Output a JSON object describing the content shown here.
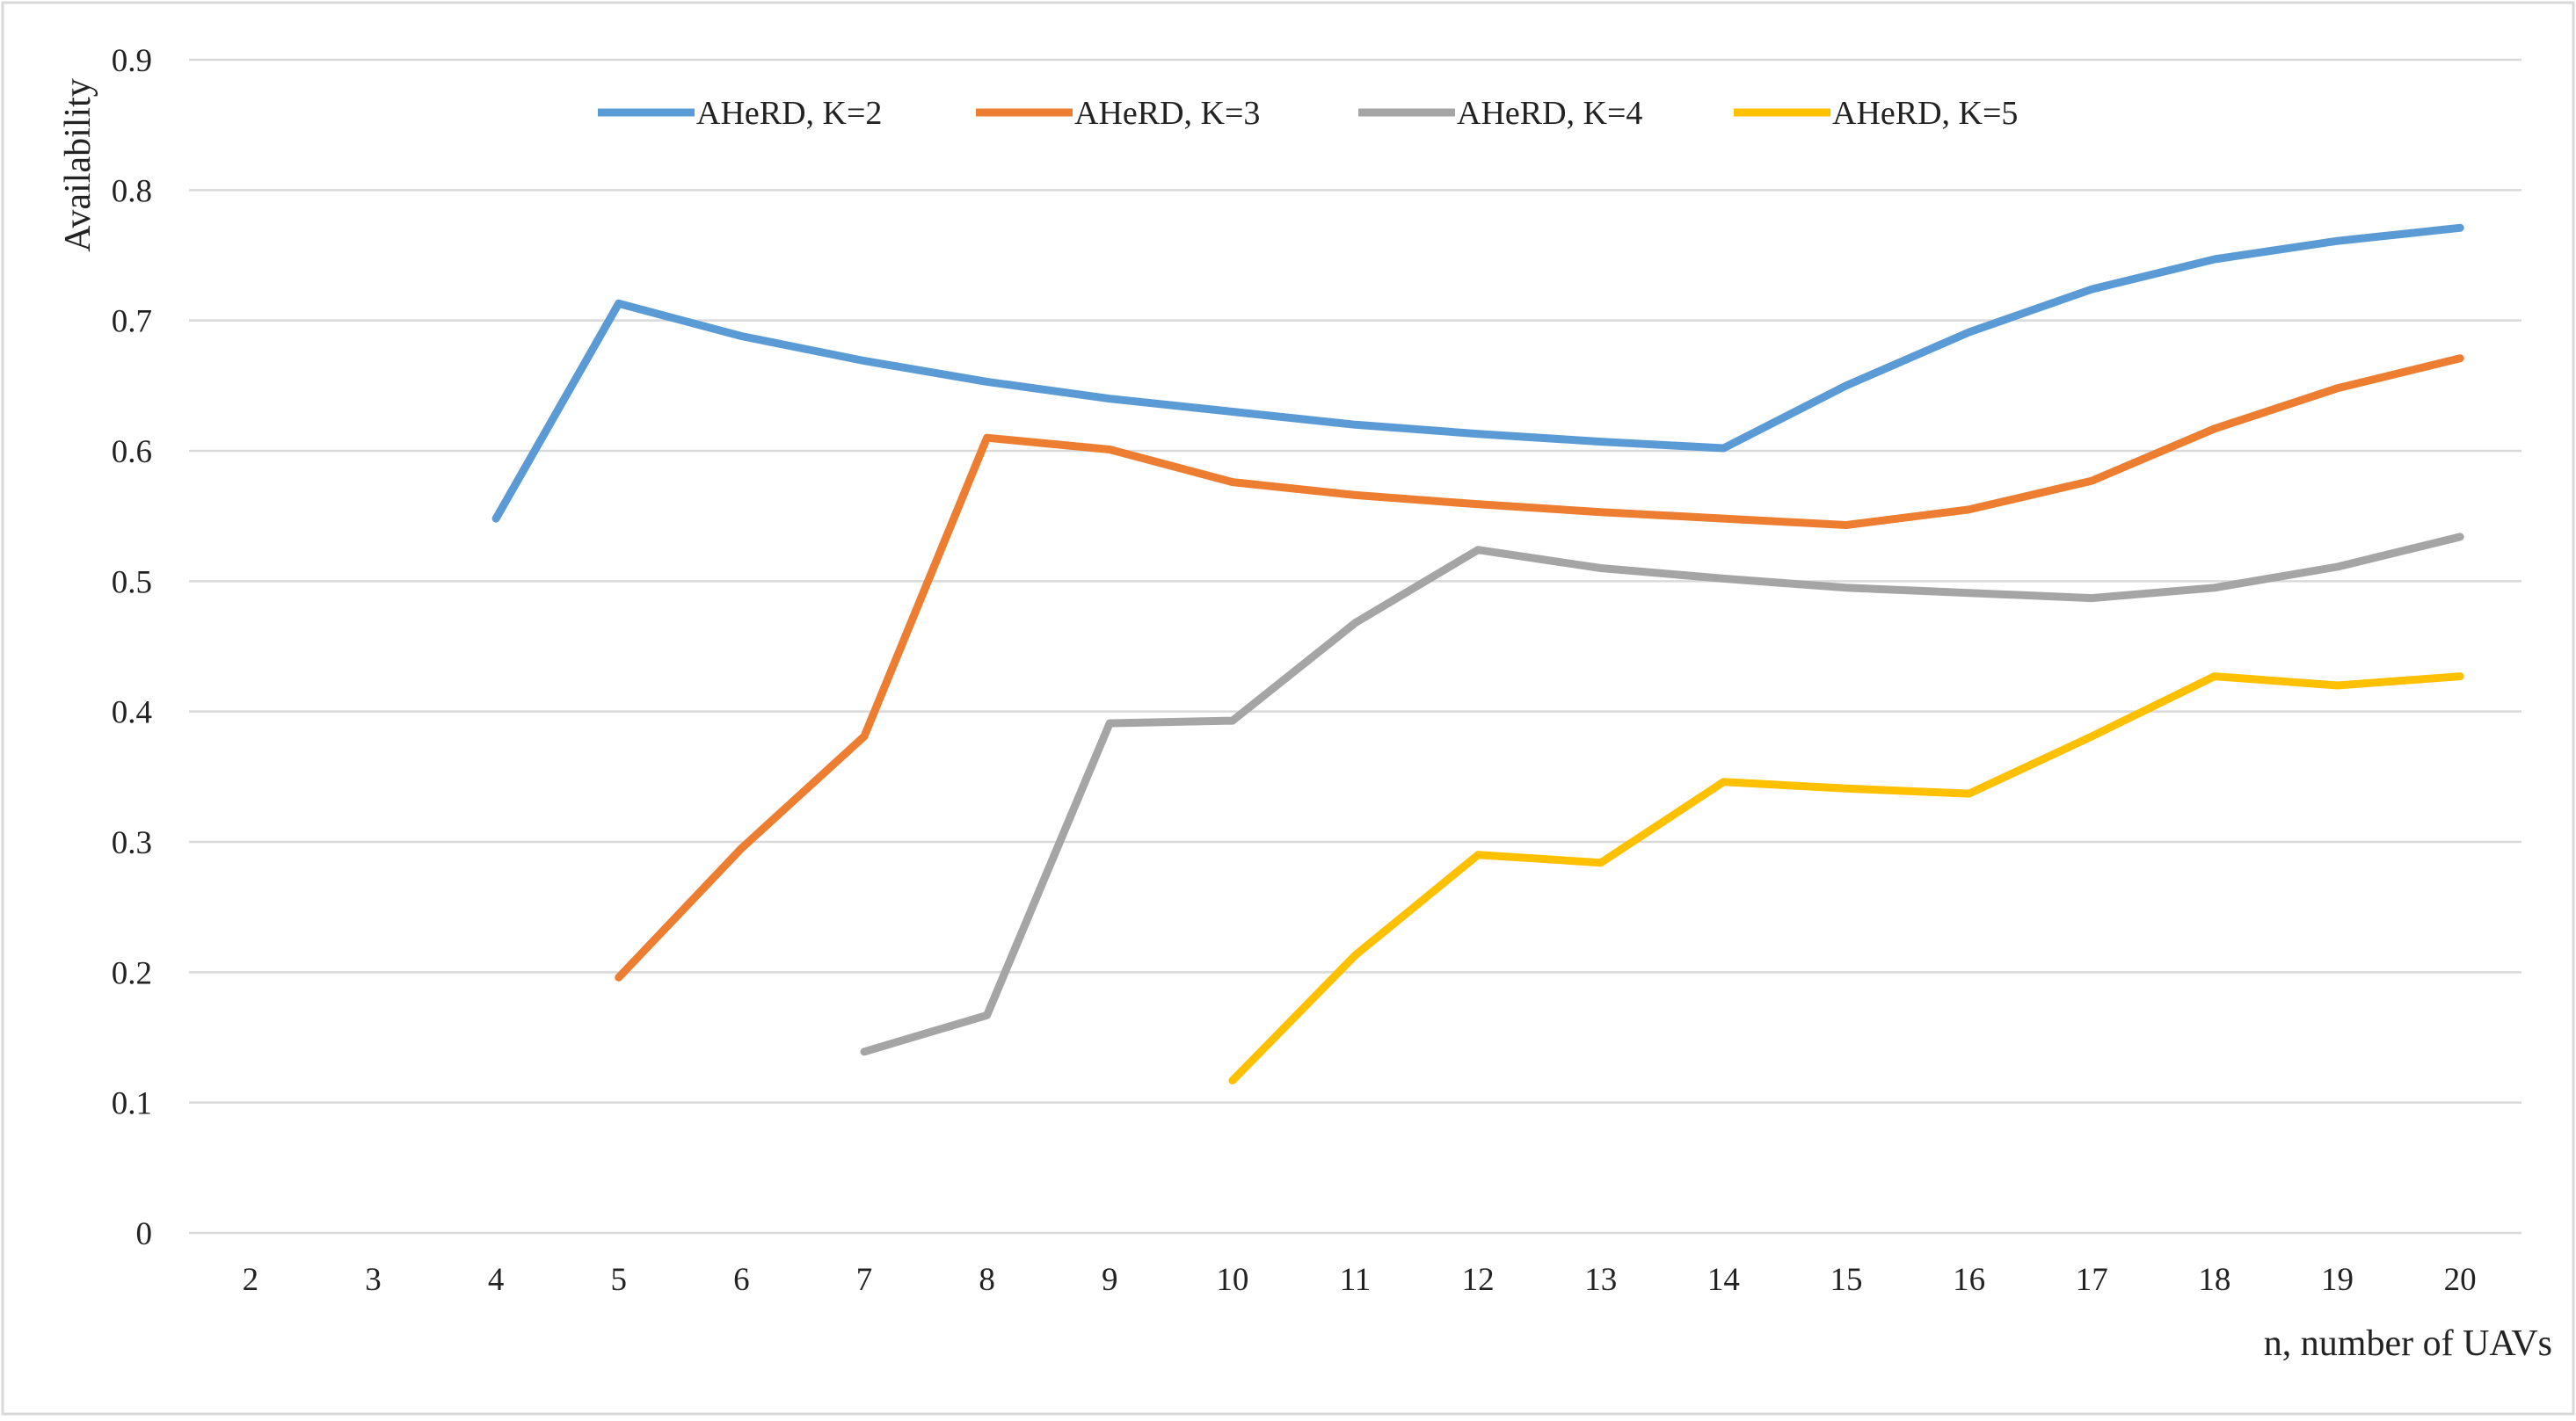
{
  "chart_data": {
    "type": "line",
    "title": "",
    "xlabel": "n, number of UAVs",
    "ylabel": "Availability",
    "x": [
      2,
      3,
      4,
      5,
      6,
      7,
      8,
      9,
      10,
      11,
      12,
      13,
      14,
      15,
      16,
      17,
      18,
      19,
      20
    ],
    "ylim": [
      0,
      0.9
    ],
    "yticks": [
      0,
      0.1,
      0.2,
      0.3,
      0.4,
      0.5,
      0.6,
      0.7,
      0.8,
      0.9
    ],
    "ytick_labels": [
      "0",
      "0.1",
      "0.2",
      "0.3",
      "0.4",
      "0.5",
      "0.6",
      "0.7",
      "0.8",
      "0.9"
    ],
    "grid": "horizontal",
    "legend_position": "top",
    "series": [
      {
        "name": "AHeRD, K=2",
        "color": "#5B9BD5",
        "values": [
          null,
          null,
          0.548,
          0.713,
          0.688,
          0.669,
          0.653,
          0.64,
          0.63,
          0.62,
          0.613,
          0.607,
          0.602,
          0.65,
          0.691,
          0.724,
          0.747,
          0.761,
          0.771
        ]
      },
      {
        "name": "AHeRD, K=3",
        "color": "#ED7D31",
        "values": [
          null,
          null,
          null,
          0.196,
          0.295,
          0.381,
          0.61,
          0.601,
          0.576,
          0.566,
          0.559,
          0.553,
          0.548,
          0.543,
          0.555,
          0.577,
          0.617,
          0.648,
          0.671
        ]
      },
      {
        "name": "AHeRD, K=4",
        "color": "#A5A5A5",
        "values": [
          null,
          null,
          null,
          null,
          null,
          0.139,
          0.167,
          0.391,
          0.393,
          0.468,
          0.524,
          0.51,
          0.502,
          0.495,
          0.491,
          0.487,
          0.495,
          0.511,
          0.534
        ]
      },
      {
        "name": "AHeRD, K=5",
        "color": "#FFC000",
        "values": [
          null,
          null,
          null,
          null,
          null,
          null,
          null,
          null,
          0.117,
          0.213,
          0.29,
          0.284,
          0.346,
          0.341,
          0.337,
          0.381,
          0.427,
          0.42,
          0.427
        ]
      }
    ]
  }
}
